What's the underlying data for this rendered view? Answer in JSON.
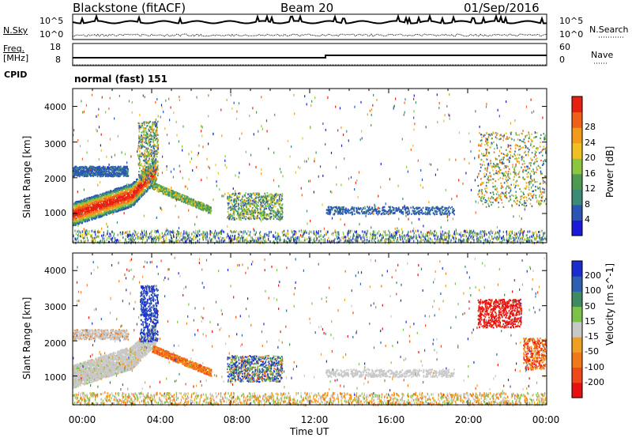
{
  "header": {
    "station": "Blackstone (fitACF)",
    "beam": "Beam 20",
    "date": "01/Sep/2016"
  },
  "top_panel": {
    "left_label": "N.Sky",
    "right_label": "N.Search",
    "left_ticks": [
      "10^5",
      "10^0"
    ],
    "right_ticks": [
      "10^5",
      "10^0"
    ]
  },
  "freq_panel": {
    "left_label_1": "Freq.",
    "left_label_2": "[MHz]",
    "right_label": "Nave",
    "left_ticks": [
      "18",
      "8"
    ],
    "right_ticks": [
      "60",
      "0"
    ]
  },
  "cpid": {
    "label": "CPID",
    "value": "normal (fast) 151"
  },
  "chart_data": [
    {
      "type": "heatmap",
      "name": "power",
      "ylabel": "Slant Range [km]",
      "xlabel": "",
      "y_ticks": [
        "1000",
        "2000",
        "3000",
        "4000"
      ],
      "x_range_hours": [
        0,
        24
      ],
      "y_range_km": [
        180,
        4500
      ],
      "colorbar_label": "Power [dB]",
      "colorbar_ticks": [
        "4",
        "8",
        "12",
        "16",
        "20",
        "24",
        "28"
      ],
      "colorbar_colors": [
        "#1a1ad8",
        "#2b55b5",
        "#3c8a78",
        "#4f9a52",
        "#8cc63e",
        "#f0c020",
        "#f49a1a",
        "#f06018",
        "#e82010"
      ]
    },
    {
      "type": "heatmap",
      "name": "velocity",
      "ylabel": "Slant Range [km]",
      "xlabel": "Time UT",
      "y_ticks": [
        "1000",
        "2000",
        "3000",
        "4000"
      ],
      "x_ticks": [
        "00:00",
        "04:00",
        "08:00",
        "12:00",
        "16:00",
        "20:00",
        "00:00"
      ],
      "x_range_hours": [
        0,
        24
      ],
      "y_range_km": [
        180,
        4500
      ],
      "colorbar_label": "Velocity [m s^-1]",
      "colorbar_ticks": [
        "200",
        "100",
        "50",
        "15",
        "-15",
        "-50",
        "-100",
        "-200"
      ],
      "colorbar_colors": [
        "#1a2bd0",
        "#2e5fb0",
        "#3f8a60",
        "#7cc24a",
        "#c8c8c8",
        "#f0a020",
        "#f07818",
        "#f04818",
        "#e81010"
      ]
    }
  ]
}
